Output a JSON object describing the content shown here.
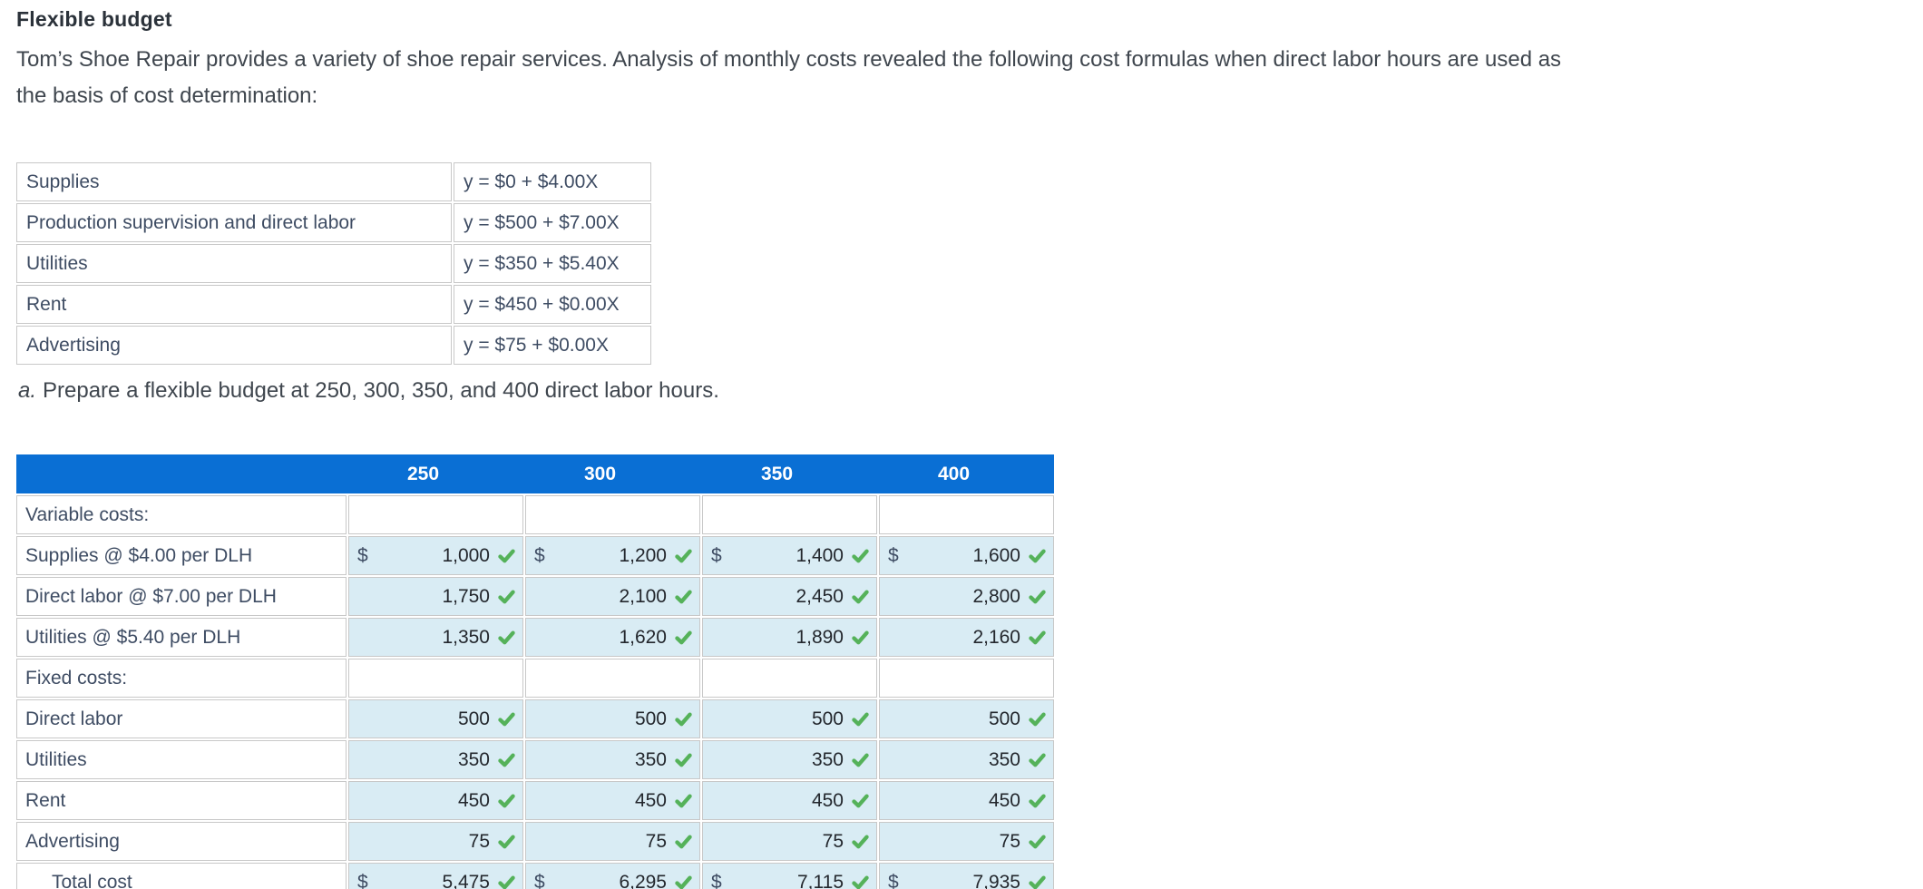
{
  "page": {
    "title": "Flexible budget",
    "intro_lines": [
      "Tom’s Shoe Repair provides a variety of shoe repair services. Analysis of monthly costs revealed the following cost formulas when direct labor hours are used as",
      "the basis of cost determination:"
    ],
    "instruction_marker": "a.",
    "instruction": "Prepare a flexible budget at 250, 300, 350, and 400 direct labor hours."
  },
  "cost_formulas": {
    "rows": [
      {
        "item": "Supplies",
        "formula": "y = $0 + $4.00X"
      },
      {
        "item": "Production supervision and direct labor",
        "formula": "y = $500 + $7.00X"
      },
      {
        "item": "Utilities",
        "formula": "y = $350 + $5.40X"
      },
      {
        "item": "Rent",
        "formula": "y = $450 + $0.00X"
      },
      {
        "item": "Advertising",
        "formula": "y = $75 + $0.00X"
      }
    ]
  },
  "budget_table": {
    "columns": [
      "250",
      "300",
      "350",
      "400"
    ],
    "rows": [
      {
        "label": "Variable costs:",
        "type": "section"
      },
      {
        "label": "Supplies @ $4.00 per DLH",
        "type": "values",
        "dollar": true,
        "values": [
          "1,000",
          "1,200",
          "1,400",
          "1,600"
        ],
        "checked": true
      },
      {
        "label": "Direct labor @ $7.00 per DLH",
        "type": "values",
        "dollar": false,
        "values": [
          "1,750",
          "2,100",
          "2,450",
          "2,800"
        ],
        "checked": true
      },
      {
        "label": "Utilities @ $5.40 per DLH",
        "type": "values",
        "dollar": false,
        "values": [
          "1,350",
          "1,620",
          "1,890",
          "2,160"
        ],
        "checked": true
      },
      {
        "label": "Fixed costs:",
        "type": "section"
      },
      {
        "label": "Direct labor",
        "type": "values",
        "dollar": false,
        "values": [
          "500",
          "500",
          "500",
          "500"
        ],
        "checked": true
      },
      {
        "label": "Utilities",
        "type": "values",
        "dollar": false,
        "values": [
          "350",
          "350",
          "350",
          "350"
        ],
        "checked": true
      },
      {
        "label": "Rent",
        "type": "values",
        "dollar": false,
        "values": [
          "450",
          "450",
          "450",
          "450"
        ],
        "checked": true
      },
      {
        "label": "Advertising",
        "type": "values",
        "dollar": false,
        "values": [
          "75",
          "75",
          "75",
          "75"
        ],
        "checked": true
      },
      {
        "label": "Total cost",
        "type": "total",
        "dollar": true,
        "values": [
          "5,475",
          "6,295",
          "7,115",
          "7,935"
        ],
        "checked": true
      }
    ],
    "dollar_sign": "$"
  },
  "icons": {
    "checkmark": "correct-check"
  },
  "colors": {
    "header_blue": "#0a6fd4",
    "cell_blue": "#d9ecf4",
    "check_green": "#55b25a",
    "label_slate": "#3e4c63",
    "number_dark": "#23272d",
    "border_gray": "#c8c8c8"
  }
}
